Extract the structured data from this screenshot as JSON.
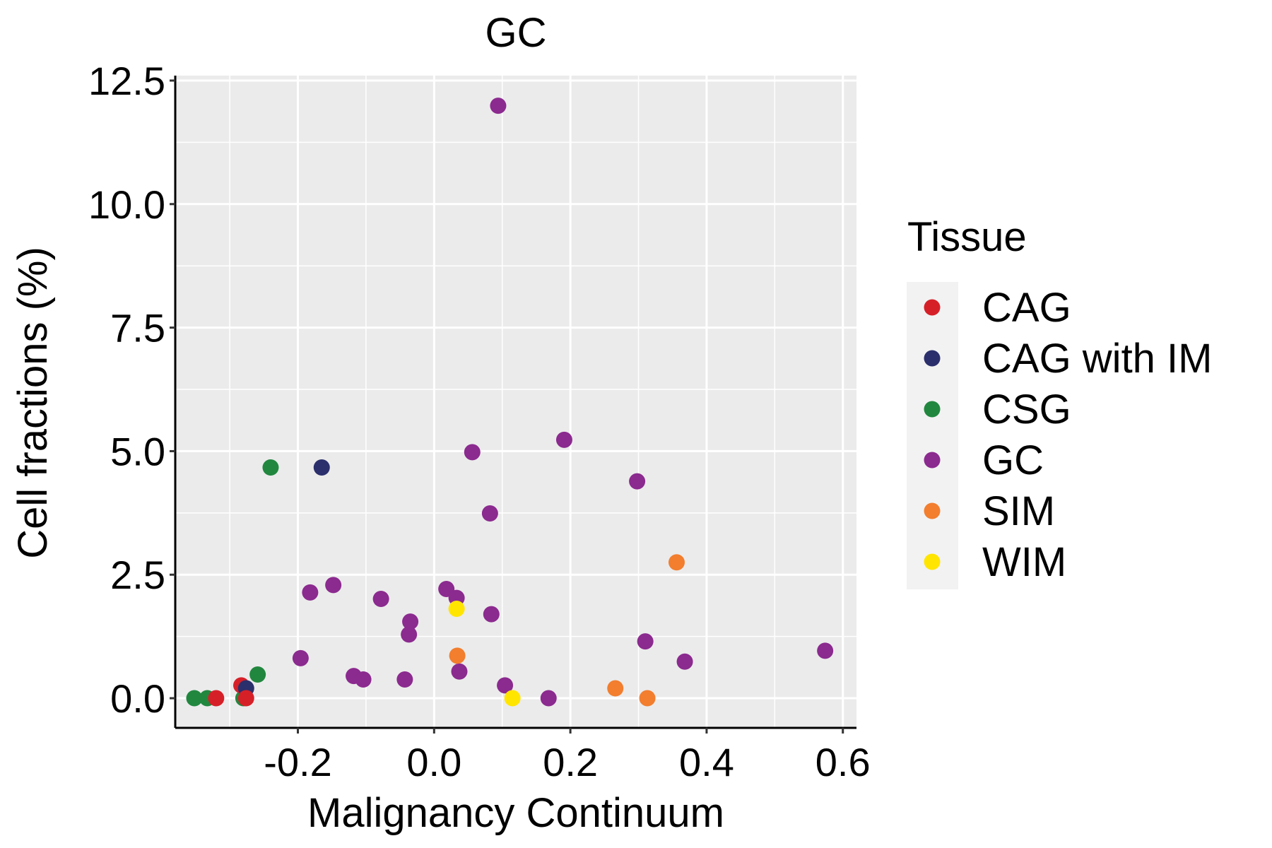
{
  "chart_data": {
    "type": "scatter",
    "title": "GC",
    "xlabel": "Malignancy Continuum",
    "ylabel": "Cell fractions (%)",
    "xlim": [
      -0.38,
      0.62
    ],
    "ylim": [
      -0.6,
      12.6
    ],
    "x_ticks": [
      -0.2,
      0.0,
      0.2,
      0.4,
      0.6
    ],
    "x_tick_labels": [
      "-0.2",
      "0.0",
      "0.2",
      "0.4",
      "0.6"
    ],
    "y_ticks": [
      0.0,
      2.5,
      5.0,
      7.5,
      10.0,
      12.5
    ],
    "y_tick_labels": [
      "0.0",
      "2.5",
      "5.0",
      "7.5",
      "10.0",
      "12.5"
    ],
    "grid": true,
    "legend": {
      "title": "Tissue",
      "placement": "right",
      "entries": [
        {
          "label": "CAG",
          "color": "#D62028"
        },
        {
          "label": "CAG with IM",
          "color": "#2B2F6B"
        },
        {
          "label": "CSG",
          "color": "#21873F"
        },
        {
          "label": "GC",
          "color": "#8B2A8F"
        },
        {
          "label": "SIM",
          "color": "#F27E2E"
        },
        {
          "label": "WIM",
          "color": "#FFE500"
        }
      ]
    },
    "series": [
      {
        "name": "CSG",
        "color": "#21873F",
        "points": [
          {
            "x": -0.24,
            "y": 4.67
          },
          {
            "x": -0.259,
            "y": 0.48
          },
          {
            "x": -0.352,
            "y": 0.0
          },
          {
            "x": -0.333,
            "y": 0.0
          },
          {
            "x": -0.28,
            "y": 0.0
          }
        ]
      },
      {
        "name": "CAG",
        "color": "#D62028",
        "points": [
          {
            "x": -0.32,
            "y": 0.0
          },
          {
            "x": -0.283,
            "y": 0.26
          }
        ]
      },
      {
        "name": "CAG with IM",
        "color": "#2B2F6B",
        "points": [
          {
            "x": -0.165,
            "y": 4.67
          },
          {
            "x": -0.276,
            "y": 0.2
          }
        ]
      },
      {
        "name": "CAG",
        "color": "#D62028",
        "points": [
          {
            "x": -0.276,
            "y": 0.0
          }
        ]
      },
      {
        "name": "GC",
        "color": "#8B2A8F",
        "points": [
          {
            "x": 0.094,
            "y": 11.99
          },
          {
            "x": 0.191,
            "y": 5.23
          },
          {
            "x": 0.056,
            "y": 4.98
          },
          {
            "x": 0.298,
            "y": 4.39
          },
          {
            "x": 0.082,
            "y": 3.74
          },
          {
            "x": -0.148,
            "y": 2.29
          },
          {
            "x": -0.182,
            "y": 2.14
          },
          {
            "x": -0.078,
            "y": 2.01
          },
          {
            "x": 0.018,
            "y": 2.21
          },
          {
            "x": 0.033,
            "y": 2.03
          },
          {
            "x": 0.084,
            "y": 1.7
          },
          {
            "x": -0.035,
            "y": 1.55
          },
          {
            "x": -0.037,
            "y": 1.29
          },
          {
            "x": 0.31,
            "y": 1.15
          },
          {
            "x": 0.574,
            "y": 0.96
          },
          {
            "x": 0.368,
            "y": 0.74
          },
          {
            "x": -0.196,
            "y": 0.81
          },
          {
            "x": -0.118,
            "y": 0.45
          },
          {
            "x": -0.104,
            "y": 0.38
          },
          {
            "x": -0.043,
            "y": 0.38
          },
          {
            "x": 0.037,
            "y": 0.54
          },
          {
            "x": 0.104,
            "y": 0.26
          },
          {
            "x": 0.168,
            "y": 0.0
          }
        ]
      },
      {
        "name": "SIM",
        "color": "#F27E2E",
        "points": [
          {
            "x": 0.356,
            "y": 2.75
          },
          {
            "x": 0.034,
            "y": 0.86
          },
          {
            "x": 0.266,
            "y": 0.2
          },
          {
            "x": 0.313,
            "y": 0.0
          }
        ]
      },
      {
        "name": "WIM",
        "color": "#FFE500",
        "points": [
          {
            "x": 0.033,
            "y": 1.81
          },
          {
            "x": 0.115,
            "y": 0.0
          }
        ]
      }
    ]
  },
  "colors": {
    "panel_background": "#EBEBEB",
    "grid": "#FFFFFF",
    "legend_key_background": "#F2F2F2",
    "axis": "#000000"
  }
}
